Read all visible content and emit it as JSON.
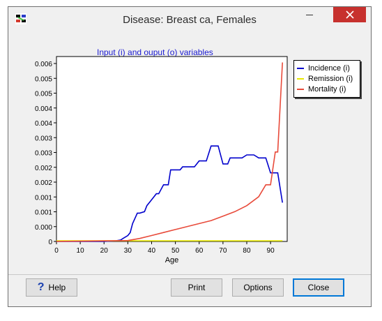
{
  "window": {
    "title": "Disease: Breast ca, Females"
  },
  "chart_data": {
    "type": "line",
    "title": "Input (i) and ouput (o) variables",
    "xlabel": "Age",
    "ylabel": "",
    "xlim": [
      0,
      97
    ],
    "ylim": [
      0,
      0.0062
    ],
    "x_ticks": [
      0,
      10,
      20,
      30,
      40,
      50,
      60,
      70,
      80,
      90
    ],
    "y_tick_labels": [
      "0.006",
      "0.005",
      "0.005",
      "0.004",
      "0.004",
      "0.003",
      "0.003",
      "0.002",
      "0.002",
      "0.001",
      "0.001",
      "0.000",
      "0"
    ],
    "legend_position": "top-right outside",
    "series": [
      {
        "name": "Incidence (i)",
        "color": "#0000cc",
        "x": [
          0,
          20,
          25,
          27,
          28,
          30,
          31,
          32,
          34,
          35,
          37,
          38,
          40,
          42,
          43,
          45,
          47,
          48,
          50,
          52,
          53,
          55,
          57,
          58,
          60,
          62,
          63,
          65,
          67,
          68,
          70,
          72,
          73,
          75,
          77,
          78,
          80,
          82,
          83,
          85,
          87,
          88,
          90,
          91,
          93,
          95
        ],
        "y": [
          0,
          0,
          2e-05,
          5e-05,
          0.0001,
          0.0002,
          0.0003,
          0.0006,
          0.00095,
          0.00095,
          0.001,
          0.0012,
          0.0014,
          0.0016,
          0.0016,
          0.0019,
          0.0019,
          0.0024,
          0.0024,
          0.0024,
          0.0025,
          0.0025,
          0.0025,
          0.0025,
          0.0027,
          0.0027,
          0.0027,
          0.0032,
          0.0032,
          0.0032,
          0.0026,
          0.0026,
          0.0028,
          0.0028,
          0.0028,
          0.0028,
          0.0029,
          0.0029,
          0.0029,
          0.0028,
          0.0028,
          0.0028,
          0.0023,
          0.0023,
          0.0023,
          0.0013
        ]
      },
      {
        "name": "Remission (i)",
        "color": "#e8e800",
        "x": [
          0,
          95
        ],
        "y": [
          2e-05,
          2e-05
        ]
      },
      {
        "name": "Mortality (i)",
        "color": "#e84a3a",
        "x": [
          0,
          30,
          35,
          40,
          45,
          50,
          55,
          60,
          65,
          70,
          75,
          80,
          85,
          88,
          90,
          92,
          93,
          95
        ],
        "y": [
          0,
          3e-05,
          0.0001,
          0.0002,
          0.0003,
          0.0004,
          0.0005,
          0.0006,
          0.0007,
          0.00085,
          0.001,
          0.0012,
          0.0015,
          0.0019,
          0.0019,
          0.003,
          0.003,
          0.006
        ]
      }
    ]
  },
  "buttons": {
    "help": "Help",
    "print": "Print",
    "options": "Options",
    "close": "Close"
  },
  "colors": {
    "title_text": "#1a1ad0",
    "close_button": "#c7312e",
    "accent_focus": "#0078d7"
  }
}
